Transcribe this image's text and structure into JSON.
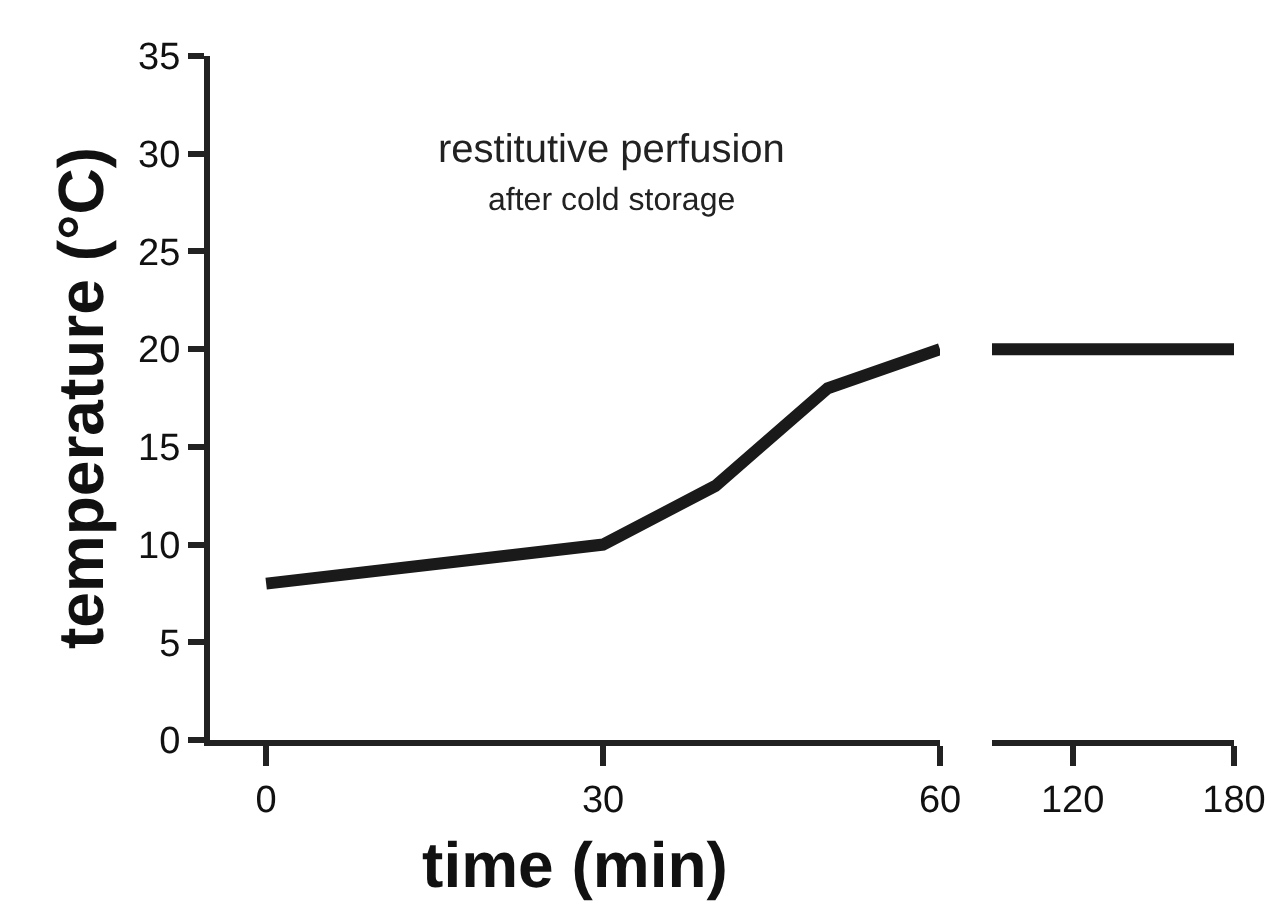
{
  "chart_data": [
    {
      "type": "line",
      "xlabel": "time (min)",
      "ylabel": "temperature (°C)",
      "annotations": [
        "restitutive perfusion",
        "after cold storage"
      ],
      "x": [
        0,
        30,
        40,
        50,
        60
      ],
      "series": [
        {
          "color": "#1a1a1a",
          "values": [
            8,
            10,
            13,
            18,
            20
          ]
        }
      ],
      "xlim": [
        -5,
        60
      ],
      "xticks": [
        0,
        30,
        60
      ],
      "ylim": [
        0,
        35
      ],
      "yticks": [
        0,
        5,
        10,
        15,
        20,
        25,
        30,
        35
      ],
      "grid": false,
      "marker": "none",
      "line_style": "solid"
    },
    {
      "type": "line",
      "x": [
        90,
        180
      ],
      "series": [
        {
          "color": "#1a1a1a",
          "values": [
            20,
            20
          ]
        }
      ],
      "xlim": [
        90,
        180
      ],
      "xticks": [
        120,
        180
      ],
      "ylim": [
        0,
        35
      ],
      "tick_labels": "x",
      "grid": false,
      "marker": "none",
      "line_style": "solid"
    }
  ]
}
